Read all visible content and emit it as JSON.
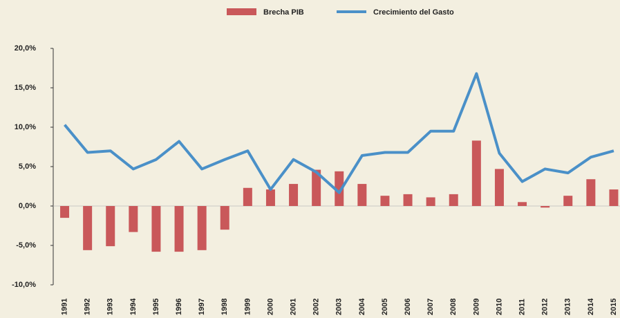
{
  "chart_data": {
    "type": "bar_line",
    "categories": [
      "1991",
      "1992",
      "1993",
      "1994",
      "1995",
      "1996",
      "1997",
      "1998",
      "1999",
      "2000",
      "2001",
      "2002",
      "2003",
      "2004",
      "2005",
      "2006",
      "2007",
      "2008",
      "2009",
      "2010",
      "2011",
      "2012",
      "2013",
      "2014",
      "2015"
    ],
    "series": [
      {
        "name": "Brecha PIB",
        "type": "bar",
        "color": "#c9585a",
        "values": [
          -1.5,
          -5.6,
          -5.1,
          -3.3,
          -5.8,
          -5.8,
          -5.6,
          -3.0,
          2.3,
          2.1,
          2.8,
          4.6,
          4.4,
          2.8,
          1.3,
          1.5,
          1.1,
          1.5,
          8.3,
          4.7,
          0.5,
          -0.2,
          1.3,
          3.4,
          2.1
        ]
      },
      {
        "name": "Crecimiento del Gasto",
        "type": "line",
        "color": "#4a90c8",
        "values": [
          10.3,
          6.8,
          7.0,
          4.7,
          5.9,
          8.2,
          4.7,
          5.9,
          7.0,
          2.1,
          5.9,
          4.3,
          1.7,
          6.4,
          6.8,
          6.8,
          9.5,
          9.5,
          16.8,
          6.7,
          3.1,
          4.7,
          4.2,
          6.2,
          7.0
        ]
      }
    ],
    "ylim": [
      -10,
      20
    ],
    "yticks": [
      {
        "value": -10,
        "label": "-10,0%"
      },
      {
        "value": -5,
        "label": "-5,0%"
      },
      {
        "value": 0,
        "label": "0,0%"
      },
      {
        "value": 5,
        "label": "5,0%"
      },
      {
        "value": 10,
        "label": "10,0%"
      },
      {
        "value": 15,
        "label": "15,0%"
      },
      {
        "value": 20,
        "label": "20,0%"
      }
    ],
    "legend": "top"
  }
}
